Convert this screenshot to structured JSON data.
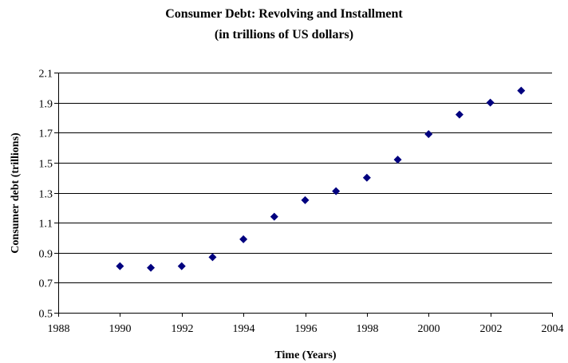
{
  "chart_data": {
    "type": "scatter",
    "title": "Consumer Debt: Revolving and Installment",
    "subtitle": "(in trillions of US dollars)",
    "xlabel": "Time (Years)",
    "ylabel": "Consumer debt (trillions)",
    "xlim": [
      1988,
      2004
    ],
    "ylim": [
      0.5,
      2.1
    ],
    "x_ticks": [
      "1988",
      "1990",
      "1992",
      "1994",
      "1996",
      "1998",
      "2000",
      "2002",
      "2004"
    ],
    "y_ticks": [
      "0.5",
      "0.7",
      "0.9",
      "1.1",
      "1.3",
      "1.5",
      "1.7",
      "1.9",
      "2.1"
    ],
    "grid": "horizontal",
    "legend": "none",
    "marker_color": "#00007f",
    "series": [
      {
        "x": [
          1990,
          1991,
          1992,
          1993,
          1994,
          1995,
          1996,
          1997,
          1998,
          1999,
          2000,
          2001,
          2002,
          2003
        ],
        "y": [
          0.81,
          0.8,
          0.81,
          0.87,
          0.99,
          1.14,
          1.25,
          1.31,
          1.4,
          1.52,
          1.69,
          1.82,
          1.9,
          1.98
        ]
      }
    ]
  }
}
